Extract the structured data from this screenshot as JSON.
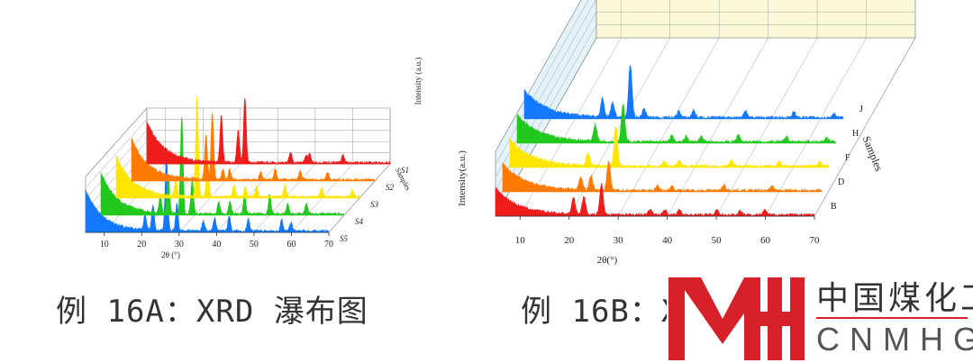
{
  "chart_data": [
    {
      "type": "area",
      "panel": "A",
      "xlabel": "2θ (°)",
      "ylabel": "Intensity (a.u.)",
      "zlabel": "Samples",
      "xlim": [
        5,
        70
      ],
      "x_ticks": [
        10,
        20,
        30,
        40,
        50,
        60,
        70
      ],
      "series": [
        {
          "name": "S1",
          "color": "#ef1c1c",
          "peaks": [
            [
              24.9,
              55
            ],
            [
              29.4,
              38
            ],
            [
              31.2,
              75
            ],
            [
              43.4,
              12
            ],
            [
              47.5,
              8
            ],
            [
              48.5,
              10
            ],
            [
              57.4,
              9
            ]
          ]
        },
        {
          "name": "S2",
          "color": "#ff7a00",
          "peaks": [
            [
              24.9,
              52
            ],
            [
              26.6,
              78
            ],
            [
              29.4,
              12
            ],
            [
              31.2,
              12
            ],
            [
              39.5,
              9
            ],
            [
              43.4,
              12
            ],
            [
              50.1,
              10
            ],
            [
              57.4,
              9
            ]
          ]
        },
        {
          "name": "S3",
          "color": "#ffe600",
          "peaks": [
            [
              20.9,
              20
            ],
            [
              26.6,
              118
            ],
            [
              29.4,
              36
            ],
            [
              36.5,
              14
            ],
            [
              39.5,
              12
            ],
            [
              42.5,
              12
            ],
            [
              50.1,
              14
            ],
            [
              59.9,
              10
            ],
            [
              68.1,
              8
            ]
          ]
        },
        {
          "name": "S4",
          "color": "#22c81e",
          "peaks": [
            [
              20.9,
              20
            ],
            [
              23.0,
              45
            ],
            [
              26.6,
              112
            ],
            [
              29.4,
              40
            ],
            [
              36.5,
              14
            ],
            [
              39.5,
              14
            ],
            [
              43.4,
              22
            ],
            [
              50.1,
              22
            ],
            [
              54.9,
              12
            ],
            [
              59.9,
              12
            ]
          ]
        },
        {
          "name": "S5",
          "color": "#1478ff",
          "peaks": [
            [
              20.9,
              18
            ],
            [
              23.0,
              30
            ],
            [
              26.6,
              90
            ],
            [
              29.4,
              32
            ],
            [
              36.5,
              12
            ],
            [
              39.5,
              16
            ],
            [
              43.4,
              18
            ],
            [
              48.5,
              14
            ],
            [
              57.4,
              14
            ],
            [
              59.9,
              10
            ]
          ]
        }
      ],
      "legend": "none",
      "grid": true
    },
    {
      "type": "area",
      "panel": "B",
      "xlabel": "2θ(°)",
      "ylabel": "Intensity(a.u.)",
      "zlabel": "Samples",
      "xlim": [
        5,
        70
      ],
      "x_ticks": [
        10,
        20,
        30,
        40,
        50,
        60,
        70
      ],
      "series": [
        {
          "name": "B",
          "color": "#ef1c1c",
          "peaks": [
            [
              20.9,
              18
            ],
            [
              23.0,
              20
            ],
            [
              26.6,
              34
            ],
            [
              36.5,
              6
            ],
            [
              39.5,
              6
            ],
            [
              42.5,
              6
            ],
            [
              50.1,
              6
            ],
            [
              54.9,
              5
            ],
            [
              59.9,
              5
            ]
          ]
        },
        {
          "name": "D",
          "color": "#ff7a00",
          "peaks": [
            [
              20.9,
              14
            ],
            [
              23.0,
              16
            ],
            [
              26.6,
              32
            ],
            [
              36.5,
              5
            ],
            [
              39.5,
              5
            ],
            [
              50.1,
              6
            ],
            [
              59.9,
              5
            ]
          ]
        },
        {
          "name": "F",
          "color": "#ffe600",
          "peaks": [
            [
              20.9,
              14
            ],
            [
              26.6,
              45
            ],
            [
              36.5,
              6
            ],
            [
              39.5,
              6
            ],
            [
              50.1,
              7
            ],
            [
              59.9,
              6
            ],
            [
              68.1,
              5
            ]
          ]
        },
        {
          "name": "H",
          "color": "#22c81e",
          "peaks": [
            [
              20.9,
              18
            ],
            [
              26.6,
              42
            ],
            [
              36.5,
              7
            ],
            [
              39.5,
              6
            ],
            [
              42.5,
              6
            ],
            [
              50.1,
              8
            ],
            [
              59.9,
              6
            ],
            [
              68.1,
              5
            ]
          ]
        },
        {
          "name": "J",
          "color": "#1478ff",
          "peaks": [
            [
              20.9,
              20
            ],
            [
              23.0,
              16
            ],
            [
              26.6,
              58
            ],
            [
              29.4,
              10
            ],
            [
              36.5,
              7
            ],
            [
              39.5,
              8
            ],
            [
              50.1,
              8
            ],
            [
              59.9,
              6
            ],
            [
              68.1,
              5
            ]
          ]
        }
      ],
      "legend": "none",
      "grid": true
    }
  ],
  "captions": {
    "a": "例 16A：XRD 瀑布图",
    "b": "例 16B：X"
  },
  "logo": {
    "cn": "中国煤化工",
    "en": "CNMHG",
    "colors": {
      "mark": "#d8202a",
      "text": "#333333"
    }
  }
}
